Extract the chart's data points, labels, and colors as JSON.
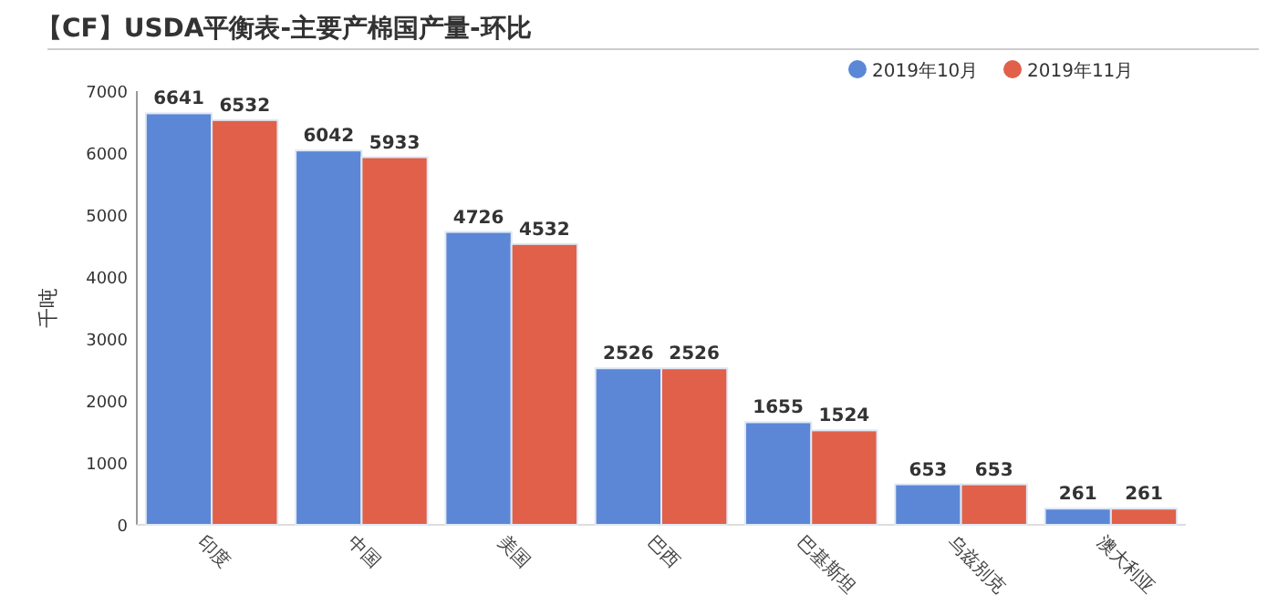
{
  "chart_data": {
    "type": "bar",
    "title": "【CF】USDA平衡表-主要产棉国产量-环比",
    "ylabel": "千吨",
    "categories": [
      "印度",
      "中国",
      "美国",
      "巴西",
      "巴基斯坦",
      "乌兹别克",
      "澳大利亚"
    ],
    "series": [
      {
        "name": "2019年10月",
        "color": "#5b87d6",
        "values": [
          6641,
          6042,
          4726,
          2526,
          1655,
          653,
          261
        ]
      },
      {
        "name": "2019年11月",
        "color": "#e0604a",
        "values": [
          6532,
          5933,
          4532,
          2526,
          1524,
          653,
          261
        ]
      }
    ],
    "ylim": [
      0,
      7000
    ],
    "yticks": [
      0,
      1000,
      2000,
      3000,
      4000,
      5000,
      6000,
      7000
    ],
    "data_labels": true,
    "legend": "top right",
    "grid": false
  }
}
